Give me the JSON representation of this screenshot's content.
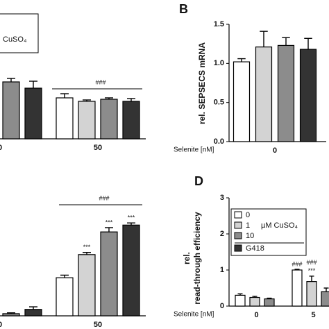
{
  "chart_data": [
    {
      "type": "bar",
      "legend_unit": "CuSO₄",
      "categories": [
        "0",
        "50"
      ],
      "ylim": [
        0,
        1.5
      ],
      "bracket": "###",
      "series": [
        {
          "color": "#ffffff",
          "values": [
            null,
            0.59
          ],
          "errors": [
            null,
            0.06
          ]
        },
        {
          "color": "#d3d3d3",
          "values": [
            null,
            0.54
          ],
          "errors": [
            null,
            0.02
          ]
        },
        {
          "color": "#8c8c8c",
          "values": [
            0.82,
            0.57
          ],
          "errors": [
            0.05,
            0.02
          ]
        },
        {
          "color": "#333333",
          "values": [
            0.73,
            0.54
          ],
          "errors": [
            0.1,
            0.04
          ]
        }
      ]
    },
    {
      "type": "bar",
      "panel": "B",
      "ylabel": [
        "rel. SEPSECS mRNA"
      ],
      "xlabel": "Selenite [nM]",
      "categories": [
        "0"
      ],
      "ylim": [
        0,
        1.5
      ],
      "yticks": [
        {
          "value": 0,
          "label": "0.0"
        },
        {
          "value": 0.5,
          "label": "0.5"
        },
        {
          "value": 1,
          "label": "1.0"
        },
        {
          "value": 1.5,
          "label": "1.5"
        }
      ],
      "series": [
        {
          "color": "#ffffff",
          "values": [
            1.02
          ],
          "errors": [
            0.04
          ]
        },
        {
          "color": "#d3d3d3",
          "values": [
            1.21
          ],
          "errors": [
            0.2
          ]
        },
        {
          "color": "#8c8c8c",
          "values": [
            1.23
          ],
          "errors": [
            0.1
          ]
        },
        {
          "color": "#333333",
          "values": [
            1.18
          ],
          "errors": [
            0.14
          ]
        }
      ]
    },
    {
      "type": "bar",
      "categories": [
        "0",
        "50"
      ],
      "ylim": [
        0,
        3
      ],
      "bracket": "###",
      "series": [
        {
          "color": "#ffffff",
          "values": [
            null,
            0.89
          ],
          "errors": [
            null,
            0.06
          ]
        },
        {
          "color": "#d3d3d3",
          "values": [
            null,
            1.43
          ],
          "errors": [
            null,
            0.05
          ],
          "significance": [
            null,
            "***"
          ]
        },
        {
          "color": "#8c8c8c",
          "values": [
            0.05,
            1.96
          ],
          "errors": [
            0.02,
            0.1
          ],
          "significance": [
            null,
            "***"
          ]
        },
        {
          "color": "#333333",
          "values": [
            0.15,
            2.12
          ],
          "errors": [
            0.06,
            0.05
          ],
          "significance": [
            null,
            "***"
          ]
        }
      ]
    },
    {
      "type": "bar",
      "panel": "D",
      "ylabel": [
        "rel.",
        "read-through efficiency"
      ],
      "xlabel": "Selenite [nM]",
      "legend_unit": "µM CuSO₄",
      "categories": [
        "0",
        "5"
      ],
      "ylim": [
        0,
        3
      ],
      "yticks": [
        0,
        1,
        2,
        3
      ],
      "series": [
        {
          "name": "0",
          "color": "#ffffff",
          "values": [
            0.3,
            1.0
          ],
          "errors": [
            0.04,
            0.02
          ],
          "significance": [
            null,
            "###"
          ]
        },
        {
          "name": "1",
          "color": "#d3d3d3",
          "values": [
            0.24,
            0.68
          ],
          "errors": [
            0.03,
            0.15
          ],
          "significance": [
            null,
            "###"
          ],
          "significance_low": [
            null,
            "***"
          ]
        },
        {
          "name": "10",
          "color": "#8c8c8c",
          "values": [
            0.2,
            0.4
          ],
          "errors": [
            0.02,
            0.1
          ]
        },
        {
          "name": "G418",
          "color": "#333333",
          "values": [
            null,
            null
          ],
          "errors": [
            null,
            null
          ]
        }
      ]
    }
  ]
}
